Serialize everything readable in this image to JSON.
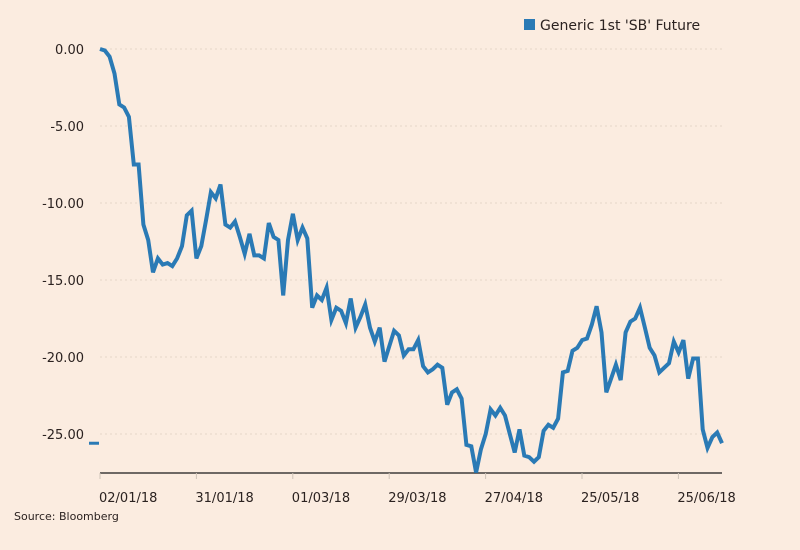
{
  "chart_data": {
    "type": "line",
    "title": "",
    "xlabel": "",
    "ylabel": "",
    "ylim": [
      -27.5,
      0
    ],
    "grid": true,
    "legend": {
      "placement": "top-right",
      "entries": [
        "Generic 1st 'SB' Future"
      ]
    },
    "yticks": [
      0,
      -5,
      -10,
      -15,
      -20,
      -25
    ],
    "ytick_labels": [
      "0.00",
      "-5.00",
      "-10.00",
      "-15.00",
      "-20.00",
      "-25.00"
    ],
    "xtick_labels": [
      "02/01/18",
      "31/01/18",
      "01/03/18",
      "29/03/18",
      "27/04/18",
      "25/05/18",
      "25/06/18"
    ],
    "last_value_marker": -25.6,
    "series": [
      {
        "name": "Generic 1st 'SB' Future",
        "color": "#2a7ab5",
        "values": [
          0,
          -0.1,
          -0.5,
          -1.6,
          -3.6,
          -3.8,
          -4.4,
          -7.5,
          -7.5,
          -11.4,
          -12.4,
          -14.5,
          -13.6,
          -14.0,
          -13.9,
          -14.1,
          -13.6,
          -12.8,
          -10.8,
          -10.5,
          -13.6,
          -12.8,
          -11.1,
          -9.3,
          -9.7,
          -8.8,
          -11.4,
          -11.6,
          -11.2,
          -12.2,
          -13.3,
          -12.0,
          -13.4,
          -13.4,
          -13.6,
          -11.3,
          -12.2,
          -12.4,
          -16.0,
          -12.4,
          -10.7,
          -12.4,
          -11.6,
          -12.3,
          -16.8,
          -16.0,
          -16.3,
          -15.5,
          -17.6,
          -16.8,
          -17.0,
          -17.8,
          -16.2,
          -18.1,
          -17.4,
          -16.6,
          -18.1,
          -19.0,
          -18.1,
          -20.3,
          -19.3,
          -18.3,
          -18.6,
          -19.9,
          -19.5,
          -19.5,
          -18.9,
          -20.6,
          -21.0,
          -20.8,
          -20.5,
          -20.7,
          -23.1,
          -22.3,
          -22.1,
          -22.7,
          -25.7,
          -25.8,
          -27.5,
          -26.0,
          -25.0,
          -23.4,
          -23.8,
          -23.3,
          -23.8,
          -25.0,
          -26.2,
          -24.7,
          -26.4,
          -26.5,
          -26.8,
          -26.5,
          -24.8,
          -24.4,
          -24.6,
          -24.0,
          -21.0,
          -20.9,
          -19.6,
          -19.4,
          -18.9,
          -18.8,
          -17.9,
          -16.7,
          -18.4,
          -22.3,
          -21.4,
          -20.5,
          -21.5,
          -18.4,
          -17.7,
          -17.5,
          -16.8,
          -18.1,
          -19.4,
          -19.9,
          -21.0,
          -20.7,
          -20.4,
          -19.0,
          -19.7,
          -18.9,
          -21.4,
          -20.1,
          -20.1,
          -24.7,
          -25.9,
          -25.2,
          -24.9,
          -25.6
        ]
      }
    ]
  },
  "source": "Source: Bloomberg"
}
